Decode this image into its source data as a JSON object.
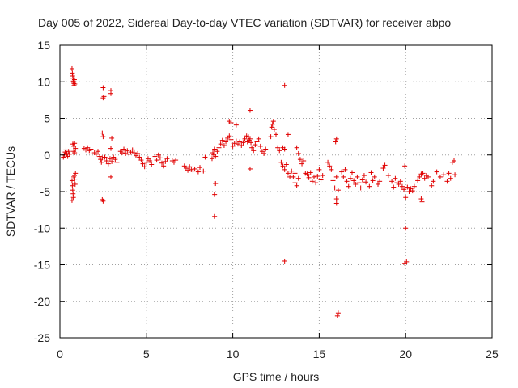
{
  "chart_data": {
    "type": "scatter",
    "title": "Day 005 of 2022, Sidereal Day-to-day VTEC variation (SDTVAR) for receiver abpo",
    "xlabel": "GPS time / hours",
    "ylabel": "SDTVAR / TECUs",
    "xlim": [
      0,
      25
    ],
    "ylim": [
      -25,
      15
    ],
    "xticks": [
      "0",
      "5",
      "10",
      "15",
      "20",
      "25"
    ],
    "yticks": [
      "15",
      "10",
      "5",
      "0",
      "-5",
      "-10",
      "-15",
      "-20",
      "-25"
    ],
    "grid": true,
    "marker": "+",
    "series": [
      {
        "name": "SDTVAR",
        "color": "#e00000",
        "points": [
          [
            0.2,
            -0.3
          ],
          [
            0.25,
            0.0
          ],
          [
            0.3,
            0.4
          ],
          [
            0.35,
            0.7
          ],
          [
            0.4,
            0.2
          ],
          [
            0.45,
            -0.2
          ],
          [
            0.5,
            0.5
          ],
          [
            0.55,
            0.1
          ],
          [
            0.7,
            11.8
          ],
          [
            0.72,
            11.2
          ],
          [
            0.74,
            10.8
          ],
          [
            0.76,
            10.5
          ],
          [
            0.78,
            10.1
          ],
          [
            0.8,
            9.8
          ],
          [
            0.82,
            9.5
          ],
          [
            0.84,
            10.3
          ],
          [
            0.86,
            9.7
          ],
          [
            0.7,
            -3.5
          ],
          [
            0.72,
            -4.2
          ],
          [
            0.74,
            -4.8
          ],
          [
            0.76,
            -5.3
          ],
          [
            0.78,
            -5.8
          ],
          [
            0.7,
            -6.2
          ],
          [
            0.8,
            -3.0
          ],
          [
            0.82,
            -4.5
          ],
          [
            0.84,
            -2.8
          ],
          [
            0.86,
            -3.3
          ],
          [
            0.88,
            -4.0
          ],
          [
            0.9,
            -2.5
          ],
          [
            0.75,
            1.5
          ],
          [
            0.8,
            1.2
          ],
          [
            0.85,
            1.6
          ],
          [
            0.9,
            0.9
          ],
          [
            0.8,
            0.5
          ],
          [
            0.85,
            0.3
          ],
          [
            1.4,
            0.9
          ],
          [
            1.5,
            0.7
          ],
          [
            1.6,
            1.0
          ],
          [
            1.7,
            0.6
          ],
          [
            1.8,
            0.8
          ],
          [
            2.0,
            0.3
          ],
          [
            2.1,
            0.1
          ],
          [
            2.2,
            0.5
          ],
          [
            2.3,
            -0.2
          ],
          [
            2.35,
            -0.6
          ],
          [
            2.4,
            -1.0
          ],
          [
            2.45,
            -0.4
          ],
          [
            2.5,
            9.2
          ],
          [
            2.55,
            8.0
          ],
          [
            2.5,
            7.8
          ],
          [
            2.45,
            3.0
          ],
          [
            2.5,
            2.5
          ],
          [
            2.45,
            -6.1
          ],
          [
            2.5,
            -6.3
          ],
          [
            2.6,
            -0.3
          ],
          [
            2.7,
            -0.8
          ],
          [
            2.8,
            -1.2
          ],
          [
            2.9,
            -0.5
          ],
          [
            3.0,
            -0.9
          ],
          [
            3.1,
            -0.3
          ],
          [
            3.2,
            -0.6
          ],
          [
            3.3,
            -1.0
          ],
          [
            2.95,
            8.8
          ],
          [
            2.95,
            8.4
          ],
          [
            3.0,
            2.3
          ],
          [
            2.95,
            0.9
          ],
          [
            2.95,
            -3.0
          ],
          [
            3.5,
            0.5
          ],
          [
            3.6,
            0.3
          ],
          [
            3.7,
            0.8
          ],
          [
            3.8,
            0.2
          ],
          [
            3.9,
            0.6
          ],
          [
            4.0,
            0.1
          ],
          [
            4.1,
            0.4
          ],
          [
            4.2,
            0.7
          ],
          [
            4.3,
            0.3
          ],
          [
            4.4,
            -0.1
          ],
          [
            4.5,
            0.2
          ],
          [
            4.6,
            -0.3
          ],
          [
            4.7,
            -0.7
          ],
          [
            4.8,
            -1.2
          ],
          [
            4.9,
            -1.6
          ],
          [
            5.0,
            -1.0
          ],
          [
            5.1,
            -0.5
          ],
          [
            5.2,
            -0.8
          ],
          [
            5.3,
            -1.3
          ],
          [
            5.5,
            -0.2
          ],
          [
            5.6,
            -0.7
          ],
          [
            5.7,
            0.0
          ],
          [
            5.8,
            -0.4
          ],
          [
            5.9,
            -1.1
          ],
          [
            6.0,
            -1.5
          ],
          [
            6.1,
            -0.9
          ],
          [
            6.2,
            -0.5
          ],
          [
            6.5,
            -0.8
          ],
          [
            6.6,
            -1.0
          ],
          [
            6.7,
            -0.7
          ],
          [
            7.2,
            -1.5
          ],
          [
            7.3,
            -1.8
          ],
          [
            7.4,
            -2.1
          ],
          [
            7.5,
            -1.6
          ],
          [
            7.6,
            -2.0
          ],
          [
            7.7,
            -2.2
          ],
          [
            7.8,
            -1.9
          ],
          [
            8.0,
            -2.3
          ],
          [
            8.1,
            -1.7
          ],
          [
            8.3,
            -2.2
          ],
          [
            8.4,
            -0.3
          ],
          [
            8.8,
            -0.5
          ],
          [
            8.85,
            0.3
          ],
          [
            8.9,
            0.0
          ],
          [
            8.95,
            0.8
          ],
          [
            9.0,
            -0.2
          ],
          [
            9.0,
            -3.9
          ],
          [
            8.95,
            -5.4
          ],
          [
            8.95,
            -8.4
          ],
          [
            9.1,
            0.5
          ],
          [
            9.2,
            1.0
          ],
          [
            9.3,
            1.5
          ],
          [
            9.4,
            2.0
          ],
          [
            9.5,
            1.3
          ],
          [
            9.6,
            1.8
          ],
          [
            9.7,
            2.3
          ],
          [
            9.8,
            2.6
          ],
          [
            9.9,
            2.1
          ],
          [
            9.8,
            4.6
          ],
          [
            9.9,
            4.4
          ],
          [
            10.2,
            4.1
          ],
          [
            10.0,
            1.2
          ],
          [
            10.1,
            1.6
          ],
          [
            10.2,
            1.9
          ],
          [
            10.3,
            1.5
          ],
          [
            10.4,
            1.8
          ],
          [
            10.5,
            1.3
          ],
          [
            10.6,
            1.7
          ],
          [
            10.7,
            2.2
          ],
          [
            10.8,
            2.6
          ],
          [
            10.85,
            1.8
          ],
          [
            10.9,
            2.5
          ],
          [
            10.95,
            2.0
          ],
          [
            11.0,
            2.2
          ],
          [
            11.05,
            1.7
          ],
          [
            11.0,
            -1.9
          ],
          [
            11.0,
            6.1
          ],
          [
            11.1,
            1.0
          ],
          [
            11.2,
            0.6
          ],
          [
            11.3,
            1.4
          ],
          [
            11.4,
            1.8
          ],
          [
            11.5,
            2.2
          ],
          [
            11.6,
            1.2
          ],
          [
            11.7,
            0.5
          ],
          [
            11.8,
            0.2
          ],
          [
            11.9,
            0.8
          ],
          [
            12.2,
            2.5
          ],
          [
            12.25,
            3.8
          ],
          [
            12.3,
            4.2
          ],
          [
            12.35,
            4.6
          ],
          [
            12.4,
            3.5
          ],
          [
            12.5,
            2.8
          ],
          [
            12.6,
            1.0
          ],
          [
            12.7,
            0.6
          ],
          [
            12.8,
            -1.0
          ],
          [
            12.9,
            -1.5
          ],
          [
            13.0,
            -2.0
          ],
          [
            13.1,
            -1.3
          ],
          [
            13.2,
            -2.5
          ],
          [
            13.3,
            -3.0
          ],
          [
            13.4,
            -2.2
          ],
          [
            13.2,
            2.8
          ],
          [
            13.0,
            9.5
          ],
          [
            13.0,
            -14.5
          ],
          [
            12.9,
            1.0
          ],
          [
            13.0,
            0.8
          ],
          [
            13.5,
            -3.0
          ],
          [
            13.6,
            -3.8
          ],
          [
            13.7,
            -4.2
          ],
          [
            13.8,
            -3.2
          ],
          [
            13.6,
            -2.5
          ],
          [
            13.7,
            1.0
          ],
          [
            13.8,
            0.2
          ],
          [
            13.9,
            -0.6
          ],
          [
            14.0,
            -1.2
          ],
          [
            14.1,
            -0.8
          ],
          [
            14.2,
            -2.5
          ],
          [
            14.3,
            -2.6
          ],
          [
            14.4,
            -3.1
          ],
          [
            14.5,
            -2.4
          ],
          [
            14.6,
            -3.6
          ],
          [
            14.7,
            -3.0
          ],
          [
            14.8,
            -3.8
          ],
          [
            14.9,
            -2.9
          ],
          [
            15.0,
            -2.0
          ],
          [
            15.1,
            -3.4
          ],
          [
            15.2,
            -2.8
          ],
          [
            15.5,
            -1.0
          ],
          [
            15.6,
            -1.5
          ],
          [
            15.7,
            -2.0
          ],
          [
            15.8,
            -3.5
          ],
          [
            15.9,
            -4.5
          ],
          [
            16.0,
            -6.0
          ],
          [
            16.0,
            -6.6
          ],
          [
            16.0,
            -3.0
          ],
          [
            16.1,
            -4.8
          ],
          [
            16.0,
            2.2
          ],
          [
            15.95,
            1.8
          ],
          [
            16.1,
            -21.6
          ],
          [
            16.05,
            -22.0
          ],
          [
            16.3,
            -2.3
          ],
          [
            16.4,
            -3.0
          ],
          [
            16.5,
            -2.0
          ],
          [
            16.6,
            -3.6
          ],
          [
            16.7,
            -4.3
          ],
          [
            16.8,
            -3.2
          ],
          [
            16.9,
            -2.4
          ],
          [
            17.0,
            -3.5
          ],
          [
            17.1,
            -4.0
          ],
          [
            17.2,
            -3.0
          ],
          [
            17.3,
            -3.8
          ],
          [
            17.4,
            -4.5
          ],
          [
            17.5,
            -3.4
          ],
          [
            17.6,
            -2.8
          ],
          [
            17.7,
            -3.7
          ],
          [
            17.9,
            -4.3
          ],
          [
            18.0,
            -2.4
          ],
          [
            18.1,
            -3.5
          ],
          [
            18.2,
            -3.0
          ],
          [
            18.4,
            -4.0
          ],
          [
            18.5,
            -3.6
          ],
          [
            18.7,
            -1.8
          ],
          [
            18.8,
            -1.4
          ],
          [
            19.0,
            -2.8
          ],
          [
            19.2,
            -3.6
          ],
          [
            19.3,
            -4.4
          ],
          [
            19.4,
            -3.2
          ],
          [
            19.5,
            -3.8
          ],
          [
            19.6,
            -4.0
          ],
          [
            19.7,
            -3.6
          ],
          [
            19.8,
            -4.3
          ],
          [
            19.9,
            -4.7
          ],
          [
            19.95,
            -1.5
          ],
          [
            20.0,
            -5.8
          ],
          [
            20.0,
            -10.0
          ],
          [
            19.95,
            -14.8
          ],
          [
            20.05,
            -14.6
          ],
          [
            20.1,
            -4.4
          ],
          [
            20.2,
            -5.0
          ],
          [
            20.3,
            -4.6
          ],
          [
            20.4,
            -4.9
          ],
          [
            20.5,
            -4.3
          ],
          [
            20.7,
            -3.5
          ],
          [
            20.8,
            -3.0
          ],
          [
            20.9,
            -2.6
          ],
          [
            20.9,
            -6.0
          ],
          [
            20.95,
            -6.4
          ],
          [
            21.0,
            -2.5
          ],
          [
            21.1,
            -3.2
          ],
          [
            21.2,
            -2.8
          ],
          [
            21.3,
            -3.0
          ],
          [
            21.5,
            -4.2
          ],
          [
            21.6,
            -3.6
          ],
          [
            21.8,
            -2.3
          ],
          [
            22.0,
            -3.0
          ],
          [
            22.2,
            -2.7
          ],
          [
            22.4,
            -3.6
          ],
          [
            22.5,
            -2.5
          ],
          [
            22.6,
            -3.2
          ],
          [
            22.7,
            -1.0
          ],
          [
            22.8,
            -0.8
          ],
          [
            22.85,
            -2.7
          ]
        ]
      }
    ]
  }
}
